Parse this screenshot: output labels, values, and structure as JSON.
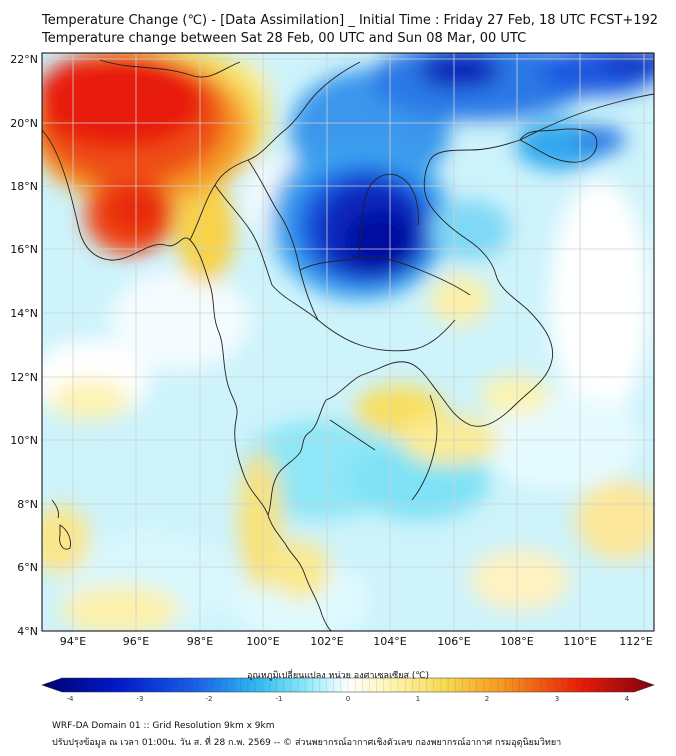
{
  "title_line1": "Temperature Change (℃) - [Data Assimilation] _ Initial Time : Friday 27 Feb, 18 UTC FCST+192",
  "title_line2": "Temperature change between Sat 28 Feb, 00 UTC and Sun 08 Mar, 00 UTC",
  "lat_labels": [
    "22°N",
    "20°N",
    "18°N",
    "16°N",
    "14°N",
    "12°N",
    "10°N",
    "8°N",
    "6°N",
    "4°N"
  ],
  "lon_labels": [
    "94°E",
    "96°E",
    "98°E",
    "100°E",
    "102°E",
    "104°E",
    "106°E",
    "108°E",
    "110°E",
    "112°E"
  ],
  "colorbar_label": "อุณหภูมิเปลี่ยนแปลง หน่วย องศาเซลเซียส (℃)",
  "colorbar_ticks": [
    "-4",
    "-3",
    "-2",
    "-1",
    "0",
    "1",
    "2",
    "3",
    "4"
  ],
  "colorbar_range": [
    -4,
    4
  ],
  "colors": {
    "deep_blue": "#0010a0",
    "blue": "#1a4fe0",
    "cyan": "#44d8f5",
    "light_cyan": "#c8f4fc",
    "white": "#ffffff",
    "pale_yellow": "#fdf3b0",
    "yellow": "#f7de60",
    "orange": "#f58a1e",
    "red": "#e81c0a",
    "dark_red": "#a00010"
  },
  "footer_line1": "WRF-DA Domain 01 :: Grid Resolution 9km x 9km",
  "footer_line2": "ปรับปรุงข้อมูล ณ เวลา 01:00น. วัน ส. ที่ 28 ก.พ. 2569 -- © ส่วนพยากรณ์อากาศเชิงตัวเลข กองพยากรณ์อากาศ กรมอุตุนิยมวิทยา"
}
